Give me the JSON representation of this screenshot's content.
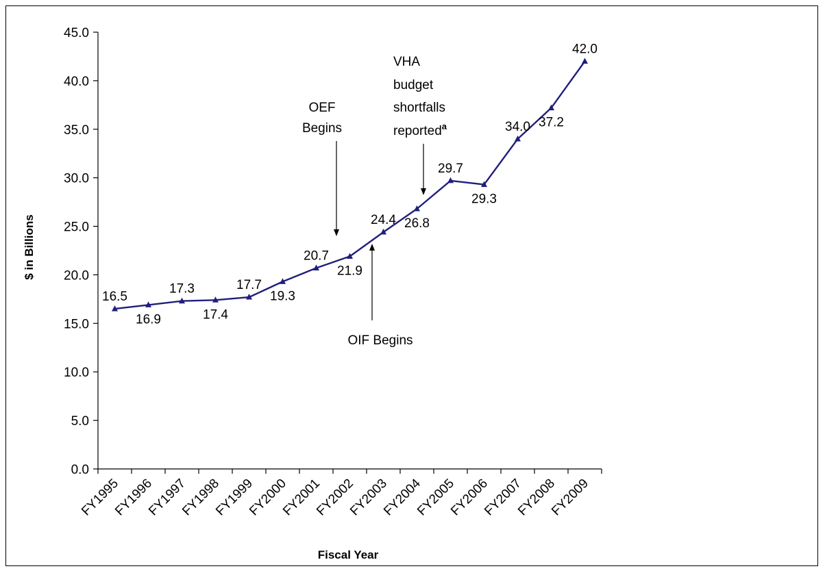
{
  "chart_data": {
    "type": "line",
    "title": "",
    "xlabel": "Fiscal Year",
    "ylabel": "$ in Billions",
    "ylim": [
      0,
      45
    ],
    "y_tick_step": 5,
    "y_tick_labels": [
      "0.0",
      "5.0",
      "10.0",
      "15.0",
      "20.0",
      "25.0",
      "30.0",
      "35.0",
      "40.0",
      "45.0"
    ],
    "grid": false,
    "legend": "none",
    "line_color": "#1f1f7a",
    "categories": [
      "FY1995",
      "FY1996",
      "FY1997",
      "FY1998",
      "FY1999",
      "FY2000",
      "FY2001",
      "FY2002",
      "FY2003",
      "FY2004",
      "FY2005",
      "FY2006",
      "FY2007",
      "FY2008",
      "FY2009"
    ],
    "series": [
      {
        "values": [
          16.5,
          16.9,
          17.3,
          17.4,
          17.7,
          19.3,
          20.7,
          21.9,
          24.4,
          26.8,
          29.7,
          29.3,
          34.0,
          37.2,
          42.0
        ]
      }
    ],
    "data_labels": [
      "16.5",
      "16.9",
      "17.3",
      "17.4",
      "17.7",
      "19.3",
      "20.7",
      "21.9",
      "24.4",
      "26.8",
      "29.7",
      "29.3",
      "34.0",
      "37.2",
      "42.0"
    ],
    "annotations": [
      {
        "lines": [
          "OEF",
          "Begins"
        ],
        "superscript": "",
        "points_to": "FY2002",
        "arrow": "down"
      },
      {
        "lines": [
          "OIF Begins"
        ],
        "superscript": "",
        "points_to": "FY2003",
        "arrow": "up"
      },
      {
        "lines": [
          "VHA",
          "budget",
          "shortfalls",
          "reported"
        ],
        "superscript": "a",
        "points_to": "FY2004",
        "arrow": "down"
      }
    ]
  }
}
